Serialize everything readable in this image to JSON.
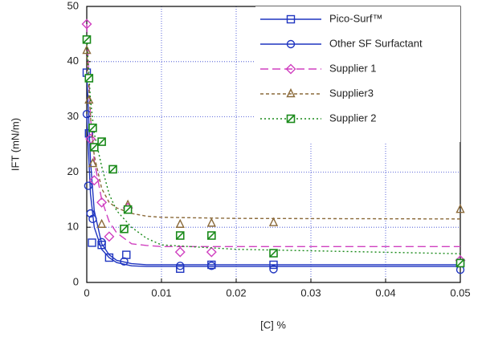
{
  "chart_data": {
    "type": "scatter",
    "xlabel": "[C] %",
    "ylabel": "IFT (mN/m)",
    "xlim": [
      0,
      0.05
    ],
    "xticks": [
      0,
      0.01,
      0.02,
      0.03,
      0.04,
      0.05
    ],
    "ylim": [
      0,
      50
    ],
    "yticks": [
      0,
      10,
      20,
      30,
      40,
      50
    ],
    "grid": true,
    "legend": "upper right",
    "series": [
      {
        "name": "Pico-Surf™",
        "color": "#1f35c0",
        "marker": "square",
        "linestyle": "solid",
        "x": [
          0,
          0.0003,
          0.0007,
          0.002,
          0.003,
          0.0053,
          0.0125,
          0.0167,
          0.025,
          0.05
        ],
        "values": [
          38,
          27,
          7.2,
          6.8,
          4.5,
          5,
          2.5,
          3.2,
          3.2,
          3.5
        ],
        "fit": {
          "x": [
            0,
            0.0005,
            0.001,
            0.002,
            0.003,
            0.004,
            0.006,
            0.008,
            0.01,
            0.02,
            0.05
          ],
          "values": [
            38,
            22,
            13,
            7,
            5,
            4,
            3.4,
            3.2,
            3.2,
            3.2,
            3.2
          ]
        }
      },
      {
        "name": "Other SF Surfactant",
        "color": "#1f35c0",
        "marker": "circle",
        "linestyle": "solid",
        "x": [
          0,
          0.0002,
          0.0005,
          0.0008,
          0.002,
          0.005,
          0.0125,
          0.0167,
          0.025,
          0.05
        ],
        "values": [
          30.5,
          17.5,
          12.5,
          11.5,
          7.3,
          3.8,
          3,
          3,
          2.4,
          2.3
        ],
        "fit": {
          "x": [
            0,
            0.0005,
            0.001,
            0.002,
            0.003,
            0.004,
            0.006,
            0.008,
            0.01,
            0.02,
            0.05
          ],
          "values": [
            30.5,
            16,
            10,
            6,
            4.5,
            3.6,
            3,
            2.9,
            2.9,
            2.9,
            2.9
          ]
        }
      },
      {
        "name": "Supplier 1",
        "color": "#d040c0",
        "marker": "diamond",
        "linestyle": "longdash",
        "x": [
          0,
          0.0005,
          0.001,
          0.002,
          0.003,
          0.0055,
          0.0125,
          0.0167,
          0.05
        ],
        "values": [
          46.8,
          26,
          18.5,
          14.5,
          8.3,
          13.5,
          5.5,
          5.5,
          4
        ],
        "fit": {
          "x": [
            0,
            0.0005,
            0.001,
            0.002,
            0.003,
            0.004,
            0.006,
            0.008,
            0.01,
            0.02,
            0.05
          ],
          "values": [
            46.8,
            30,
            22,
            15,
            11,
            9,
            7,
            6.7,
            6.5,
            6.5,
            6.5
          ]
        }
      },
      {
        "name": "Supplier3",
        "color": "#8b6a3a",
        "marker": "triangle",
        "linestyle": "shortdash",
        "x": [
          0,
          0.0003,
          0.0008,
          0.002,
          0.0055,
          0.0125,
          0.0167,
          0.025,
          0.05
        ],
        "values": [
          42,
          33,
          21.5,
          10.5,
          14,
          10.5,
          10.7,
          10.8,
          13.2
        ],
        "fit": {
          "x": [
            0,
            0.0005,
            0.001,
            0.002,
            0.003,
            0.004,
            0.006,
            0.008,
            0.01,
            0.02,
            0.05
          ],
          "values": [
            42,
            30,
            23,
            17,
            14.5,
            13.5,
            12.5,
            12,
            11.8,
            11.6,
            11.5
          ]
        }
      },
      {
        "name": "Supplier 2",
        "color": "#1a8a1a",
        "marker": "slashsquare",
        "linestyle": "dotted",
        "x": [
          0,
          0.0003,
          0.0008,
          0.001,
          0.002,
          0.0035,
          0.005,
          0.0055,
          0.0125,
          0.0167,
          0.025,
          0.05
        ],
        "values": [
          44,
          37,
          28,
          24.5,
          25.5,
          20.5,
          9.7,
          13.2,
          8.5,
          8.5,
          5.3,
          3.5
        ],
        "fit": {
          "x": [
            0,
            0.0005,
            0.001,
            0.002,
            0.003,
            0.004,
            0.006,
            0.008,
            0.01,
            0.02,
            0.05
          ],
          "values": [
            44,
            33,
            27,
            21,
            16,
            13,
            10,
            8,
            6.8,
            6,
            5.2
          ]
        }
      }
    ]
  }
}
